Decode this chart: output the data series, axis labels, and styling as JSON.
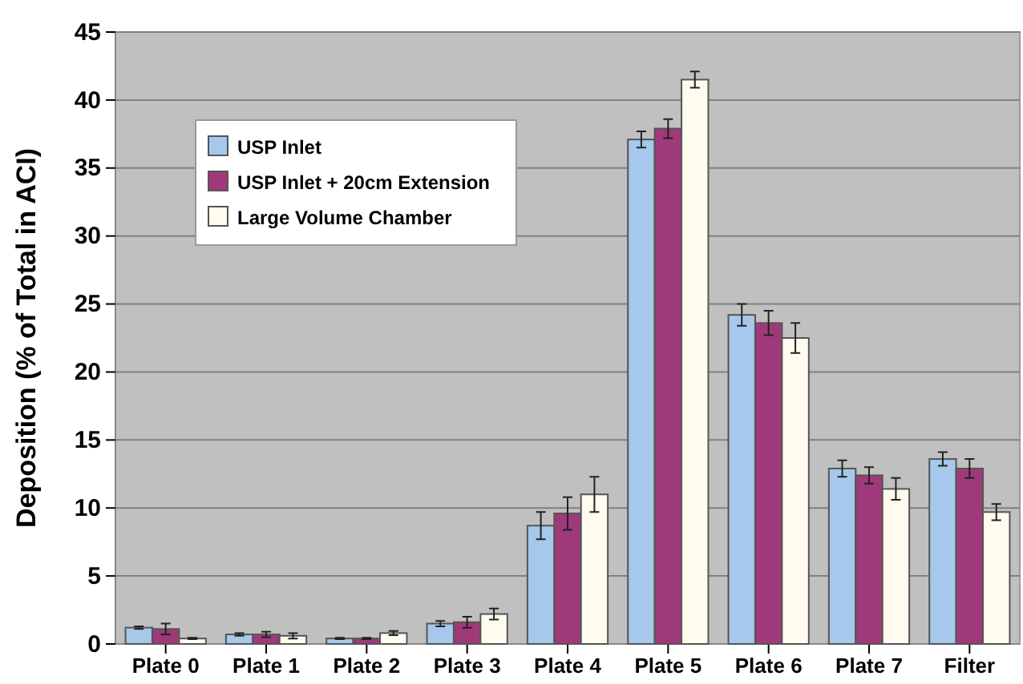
{
  "chart_data": {
    "type": "bar",
    "ylabel": "Deposition (% of Total in ACI)",
    "categories": [
      "Plate 0",
      "Plate 1",
      "Plate 2",
      "Plate 3",
      "Plate 4",
      "Plate 5",
      "Plate 6",
      "Plate 7",
      "Filter"
    ],
    "series": [
      {
        "name": "USP Inlet",
        "color": "#a6c8ec",
        "values": [
          1.2,
          0.7,
          0.4,
          1.5,
          8.7,
          37.1,
          24.2,
          12.9,
          13.6
        ],
        "errors": [
          0.1,
          0.1,
          0.05,
          0.2,
          1.0,
          0.6,
          0.8,
          0.6,
          0.5
        ]
      },
      {
        "name": "USP Inlet + 20cm Extension",
        "color": "#a0397a",
        "values": [
          1.1,
          0.7,
          0.4,
          1.6,
          9.6,
          37.9,
          23.6,
          12.4,
          12.9
        ],
        "errors": [
          0.4,
          0.2,
          0.05,
          0.4,
          1.2,
          0.7,
          0.9,
          0.6,
          0.7
        ]
      },
      {
        "name": "Large Volume Chamber",
        "color": "#fffbee",
        "values": [
          0.4,
          0.6,
          0.8,
          2.2,
          11.0,
          41.5,
          22.5,
          11.4,
          9.7
        ],
        "errors": [
          0.05,
          0.2,
          0.15,
          0.4,
          1.3,
          0.6,
          1.1,
          0.8,
          0.6
        ]
      }
    ],
    "ylim": [
      0,
      45
    ],
    "yticks": [
      0,
      5,
      10,
      15,
      20,
      25,
      30,
      35,
      40,
      45
    ],
    "grid": "y",
    "legend": "top left"
  }
}
